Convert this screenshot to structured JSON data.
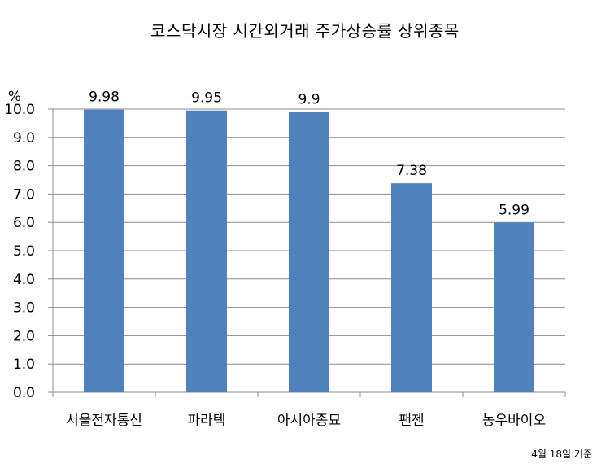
{
  "chart_data": {
    "type": "bar",
    "title": "코스닥시장 시간외거래  주가상승률 상위종목",
    "ylabel": "%",
    "xlabel": "",
    "categories": [
      "서울전자통신",
      "파라텍",
      "아시아종묘",
      "팬젠",
      "농우바이오"
    ],
    "values": [
      9.98,
      9.95,
      9.9,
      7.38,
      5.99
    ],
    "data_labels": [
      "9.98",
      "9.95",
      "9.9",
      "7.38",
      "5.99"
    ],
    "ylim": [
      0,
      10
    ],
    "yticks": [
      "0.0",
      "1.0",
      "2.0",
      "3.0",
      "4.0",
      "5.0",
      "6.0",
      "7.0",
      "8.0",
      "9.0",
      "10.0"
    ],
    "grid": true,
    "legend": "none",
    "bar_color": "#4F81BD",
    "grid_color": "#8C8C8C",
    "axis_color": "#8C8C8C"
  },
  "footnote": "4월 18일 기준"
}
